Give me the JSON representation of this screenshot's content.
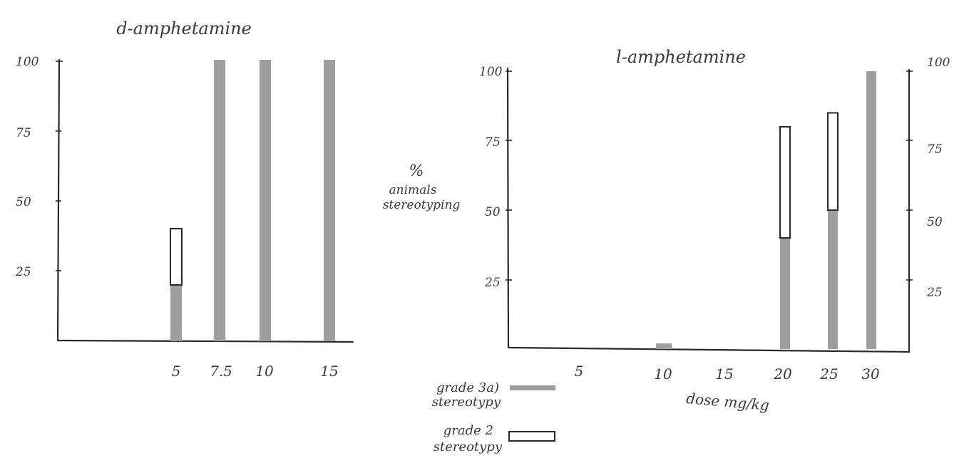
{
  "colors": {
    "background": "#ffffff",
    "ink": "#2a2a2a",
    "grade3_fill": "#9e9e9e",
    "grade2_fill": "#ffffff"
  },
  "ylabel": [
    "%",
    "animals",
    "stereotyping"
  ],
  "xlabel": "dose mg/kg",
  "legend": [
    {
      "label": [
        "grade 3a)",
        "stereotypy"
      ],
      "style": "filled"
    },
    {
      "label": [
        "grade 2",
        "stereotypy"
      ],
      "style": "open"
    }
  ],
  "chart_data": [
    {
      "type": "bar",
      "title": "d-amphetamine",
      "ylim": [
        0,
        100
      ],
      "yticks": [
        "100",
        "75",
        "50",
        "25"
      ],
      "categories": [
        "5",
        "7.5",
        "10",
        "15"
      ],
      "series": [
        {
          "name": "grade 3a) stereotypy",
          "values": [
            20,
            100,
            100,
            100
          ]
        },
        {
          "name": "grade 2 stereotypy",
          "values": [
            20,
            0,
            0,
            0
          ]
        }
      ]
    },
    {
      "type": "bar",
      "title": "l-amphetamine",
      "ylim": [
        0,
        100
      ],
      "yticks": [
        "100",
        "75",
        "50",
        "25"
      ],
      "yticks_right": [
        "100",
        "75",
        "50",
        "25"
      ],
      "categories": [
        "5",
        "10",
        "15",
        "20",
        "25",
        "30"
      ],
      "series": [
        {
          "name": "grade 3a) stereotypy",
          "values": [
            0,
            2,
            0,
            40,
            50,
            100
          ]
        },
        {
          "name": "grade 2 stereotypy",
          "values": [
            0,
            0,
            0,
            40,
            35,
            0
          ]
        }
      ]
    }
  ]
}
